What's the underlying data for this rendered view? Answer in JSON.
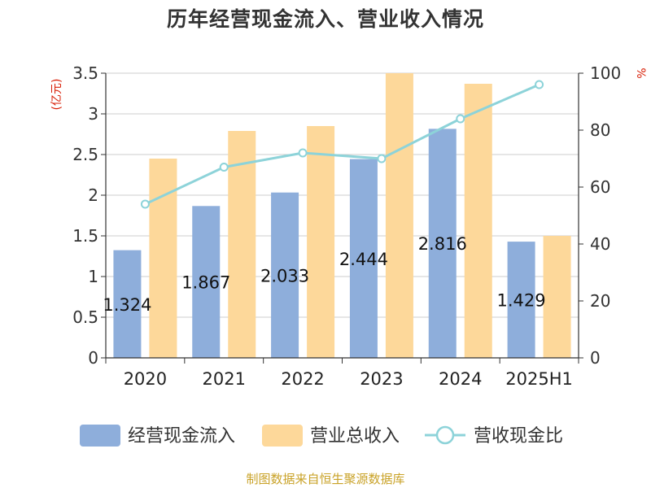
{
  "chart_data": {
    "type": "bar",
    "title": "历年经营现金流入、营业收入情况",
    "categories": [
      "2020",
      "2021",
      "2022",
      "2023",
      "2024",
      "2025H1"
    ],
    "series": [
      {
        "name": "经营现金流入",
        "type": "bar",
        "axis": "left",
        "color": "#8eaedb",
        "values": [
          1.324,
          1.867,
          2.033,
          2.444,
          2.816,
          1.429
        ]
      },
      {
        "name": "营业总收入",
        "type": "bar",
        "axis": "left",
        "color": "#fdd89a",
        "values": [
          2.45,
          2.79,
          2.85,
          3.5,
          3.37,
          1.5
        ]
      },
      {
        "name": "营收现金比",
        "type": "line",
        "axis": "right",
        "color": "#8dd3d9",
        "values": [
          54,
          67,
          72,
          70,
          84,
          96
        ]
      }
    ],
    "data_labels": [
      "1.324",
      "1.867",
      "2.033",
      "2.444",
      "2.816",
      "1.429"
    ],
    "y_left": {
      "label": "(亿元)",
      "min": 0,
      "max": 3.5,
      "ticks": [
        "0",
        "0.5",
        "1",
        "1.5",
        "2",
        "2.5",
        "3",
        "3.5"
      ]
    },
    "y_right": {
      "label": "%",
      "min": 0,
      "max": 100,
      "ticks": [
        "0",
        "20",
        "40",
        "60",
        "80",
        "100"
      ]
    },
    "grid": true,
    "legend_position": "bottom"
  },
  "footer": "制图数据来自恒生聚源数据库"
}
